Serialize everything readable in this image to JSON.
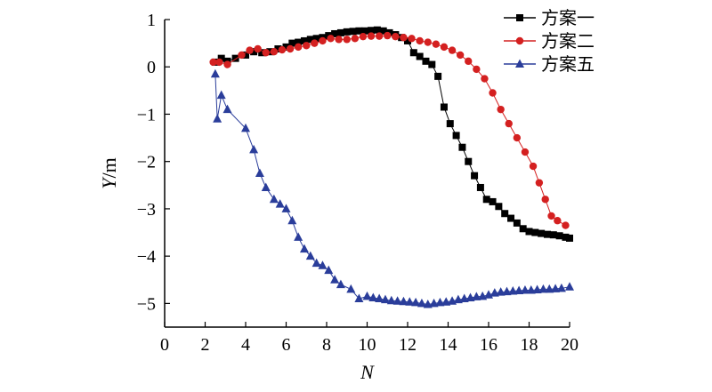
{
  "chart_data": {
    "type": "line",
    "xlabel_var": "N",
    "ylabel_var": "Y",
    "ylabel_unit": "/m",
    "xlim": [
      0,
      20
    ],
    "ylim": [
      -5.5,
      1
    ],
    "xticks": [
      0,
      2,
      4,
      6,
      8,
      10,
      12,
      14,
      16,
      18,
      20
    ],
    "yticks": [
      1,
      0,
      -1,
      -2,
      -3,
      -4,
      -5
    ],
    "ytick_labels": [
      "1",
      "0",
      "−1",
      "−2",
      "−3",
      "−4",
      "−5"
    ],
    "grid": false,
    "legend_position": "top-right",
    "series": [
      {
        "name": "方案一",
        "color": "#000000",
        "marker": "square",
        "points": [
          [
            2.5,
            0.1
          ],
          [
            2.8,
            0.18
          ],
          [
            3.1,
            0.12
          ],
          [
            3.5,
            0.18
          ],
          [
            4.0,
            0.25
          ],
          [
            4.4,
            0.32
          ],
          [
            4.8,
            0.3
          ],
          [
            5.2,
            0.32
          ],
          [
            5.6,
            0.38
          ],
          [
            6.0,
            0.42
          ],
          [
            6.3,
            0.5
          ],
          [
            6.6,
            0.52
          ],
          [
            6.9,
            0.55
          ],
          [
            7.2,
            0.58
          ],
          [
            7.5,
            0.6
          ],
          [
            7.8,
            0.62
          ],
          [
            8.1,
            0.66
          ],
          [
            8.4,
            0.7
          ],
          [
            8.7,
            0.72
          ],
          [
            9.0,
            0.74
          ],
          [
            9.3,
            0.75
          ],
          [
            9.6,
            0.76
          ],
          [
            9.9,
            0.76
          ],
          [
            10.2,
            0.77
          ],
          [
            10.5,
            0.78
          ],
          [
            10.8,
            0.76
          ],
          [
            11.1,
            0.72
          ],
          [
            11.4,
            0.68
          ],
          [
            11.7,
            0.62
          ],
          [
            12.0,
            0.55
          ],
          [
            12.3,
            0.3
          ],
          [
            12.6,
            0.22
          ],
          [
            12.9,
            0.12
          ],
          [
            13.2,
            0.05
          ],
          [
            13.5,
            -0.2
          ],
          [
            13.8,
            -0.85
          ],
          [
            14.1,
            -1.2
          ],
          [
            14.4,
            -1.45
          ],
          [
            14.7,
            -1.7
          ],
          [
            15.0,
            -2.0
          ],
          [
            15.3,
            -2.3
          ],
          [
            15.6,
            -2.55
          ],
          [
            15.9,
            -2.8
          ],
          [
            16.2,
            -2.85
          ],
          [
            16.5,
            -2.95
          ],
          [
            16.8,
            -3.1
          ],
          [
            17.1,
            -3.2
          ],
          [
            17.4,
            -3.3
          ],
          [
            17.7,
            -3.42
          ],
          [
            18.0,
            -3.48
          ],
          [
            18.3,
            -3.5
          ],
          [
            18.6,
            -3.52
          ],
          [
            18.9,
            -3.54
          ],
          [
            19.2,
            -3.55
          ],
          [
            19.5,
            -3.57
          ],
          [
            19.8,
            -3.6
          ],
          [
            20.0,
            -3.62
          ]
        ]
      },
      {
        "name": "方案二",
        "color": "#d42020",
        "marker": "circle",
        "points": [
          [
            2.4,
            0.1
          ],
          [
            2.7,
            0.1
          ],
          [
            3.1,
            0.05
          ],
          [
            3.8,
            0.25
          ],
          [
            4.2,
            0.35
          ],
          [
            4.6,
            0.38
          ],
          [
            5.0,
            0.3
          ],
          [
            5.4,
            0.32
          ],
          [
            5.8,
            0.36
          ],
          [
            6.2,
            0.38
          ],
          [
            6.6,
            0.42
          ],
          [
            7.0,
            0.45
          ],
          [
            7.4,
            0.5
          ],
          [
            7.8,
            0.55
          ],
          [
            8.2,
            0.6
          ],
          [
            8.6,
            0.58
          ],
          [
            9.0,
            0.58
          ],
          [
            9.4,
            0.6
          ],
          [
            9.8,
            0.64
          ],
          [
            10.2,
            0.65
          ],
          [
            10.6,
            0.65
          ],
          [
            11.0,
            0.66
          ],
          [
            11.4,
            0.64
          ],
          [
            11.8,
            0.62
          ],
          [
            12.2,
            0.6
          ],
          [
            12.6,
            0.55
          ],
          [
            13.0,
            0.52
          ],
          [
            13.4,
            0.48
          ],
          [
            13.8,
            0.42
          ],
          [
            14.2,
            0.35
          ],
          [
            14.6,
            0.25
          ],
          [
            15.0,
            0.12
          ],
          [
            15.4,
            -0.05
          ],
          [
            15.8,
            -0.25
          ],
          [
            16.2,
            -0.55
          ],
          [
            16.6,
            -0.9
          ],
          [
            17.0,
            -1.2
          ],
          [
            17.4,
            -1.5
          ],
          [
            17.8,
            -1.8
          ],
          [
            18.2,
            -2.1
          ],
          [
            18.5,
            -2.45
          ],
          [
            18.8,
            -2.8
          ],
          [
            19.1,
            -3.15
          ],
          [
            19.4,
            -3.25
          ],
          [
            19.8,
            -3.35
          ]
        ]
      },
      {
        "name": "方案五",
        "color": "#2a3d9a",
        "marker": "triangle",
        "points": [
          [
            2.5,
            -0.15
          ],
          [
            2.6,
            -1.1
          ],
          [
            2.8,
            -0.6
          ],
          [
            3.1,
            -0.9
          ],
          [
            4.0,
            -1.3
          ],
          [
            4.4,
            -1.75
          ],
          [
            4.7,
            -2.25
          ],
          [
            5.0,
            -2.55
          ],
          [
            5.4,
            -2.8
          ],
          [
            5.7,
            -2.9
          ],
          [
            6.0,
            -3.0
          ],
          [
            6.3,
            -3.25
          ],
          [
            6.6,
            -3.6
          ],
          [
            6.9,
            -3.85
          ],
          [
            7.2,
            -4.0
          ],
          [
            7.5,
            -4.15
          ],
          [
            7.8,
            -4.2
          ],
          [
            8.1,
            -4.3
          ],
          [
            8.4,
            -4.5
          ],
          [
            8.7,
            -4.6
          ],
          [
            9.2,
            -4.7
          ],
          [
            9.6,
            -4.9
          ],
          [
            10.0,
            -4.85
          ],
          [
            10.3,
            -4.88
          ],
          [
            10.6,
            -4.9
          ],
          [
            10.9,
            -4.92
          ],
          [
            11.2,
            -4.94
          ],
          [
            11.5,
            -4.95
          ],
          [
            11.8,
            -4.96
          ],
          [
            12.1,
            -4.97
          ],
          [
            12.4,
            -4.98
          ],
          [
            12.7,
            -5.0
          ],
          [
            13.0,
            -5.02
          ],
          [
            13.3,
            -5.0
          ],
          [
            13.6,
            -4.98
          ],
          [
            13.9,
            -4.97
          ],
          [
            14.2,
            -4.95
          ],
          [
            14.5,
            -4.92
          ],
          [
            14.8,
            -4.9
          ],
          [
            15.1,
            -4.88
          ],
          [
            15.4,
            -4.86
          ],
          [
            15.7,
            -4.85
          ],
          [
            16.0,
            -4.82
          ],
          [
            16.3,
            -4.78
          ],
          [
            16.6,
            -4.76
          ],
          [
            16.9,
            -4.75
          ],
          [
            17.2,
            -4.74
          ],
          [
            17.5,
            -4.73
          ],
          [
            17.8,
            -4.72
          ],
          [
            18.1,
            -4.72
          ],
          [
            18.4,
            -4.71
          ],
          [
            18.7,
            -4.7
          ],
          [
            19.0,
            -4.7
          ],
          [
            19.3,
            -4.69
          ],
          [
            19.6,
            -4.68
          ],
          [
            20.0,
            -4.65
          ]
        ]
      }
    ]
  }
}
